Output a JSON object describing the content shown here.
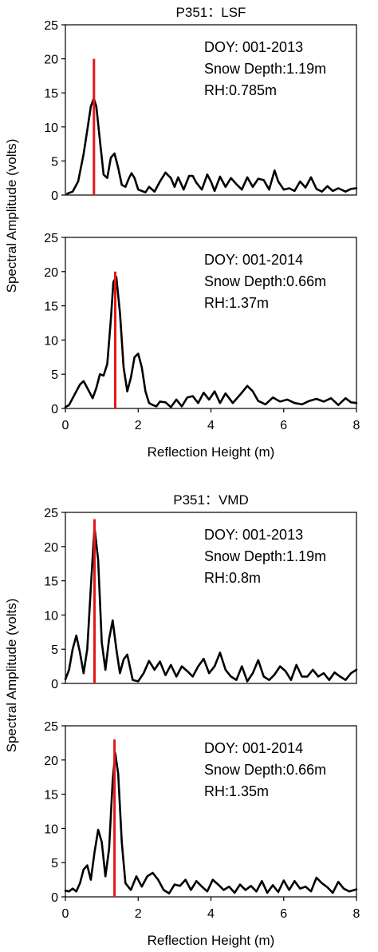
{
  "figure": {
    "ylabel_top": "Spectral Amplitude (volts)",
    "ylabel_bottom": "Spectral Amplitude (volts)"
  },
  "chart_data": [
    {
      "type": "line",
      "title": "P351：LSF",
      "xlabel": "",
      "ylabel": "Spectral Amplitude (volts)",
      "xlim": [
        0,
        8
      ],
      "ylim": [
        0,
        25
      ],
      "yticks": [
        0,
        5,
        10,
        15,
        20,
        25
      ],
      "xticks": [],
      "annotation": [
        "DOY: 001-2013",
        "Snow Depth:1.19m",
        "RH:0.785m"
      ],
      "peak_marker": {
        "x": 0.785,
        "height": 20,
        "color": "#e3171b"
      },
      "series": [
        {
          "color": "#000000",
          "x": [
            0.05,
            0.2,
            0.35,
            0.5,
            0.6,
            0.7,
            0.78,
            0.85,
            0.95,
            1.05,
            1.15,
            1.25,
            1.35,
            1.45,
            1.55,
            1.65,
            1.75,
            1.82,
            1.9,
            2.0,
            2.1,
            2.2,
            2.3,
            2.45,
            2.6,
            2.75,
            2.9,
            3.0,
            3.1,
            3.25,
            3.4,
            3.5,
            3.6,
            3.75,
            3.9,
            4.0,
            4.1,
            4.25,
            4.4,
            4.55,
            4.7,
            4.85,
            5.0,
            5.15,
            5.3,
            5.45,
            5.6,
            5.75,
            5.85,
            6.0,
            6.15,
            6.3,
            6.45,
            6.6,
            6.75,
            6.9,
            7.05,
            7.2,
            7.35,
            7.5,
            7.7,
            7.85,
            8.0
          ],
          "y": [
            0.2,
            0.5,
            2.0,
            6.0,
            9.5,
            13.0,
            14.2,
            13.0,
            8.0,
            3.0,
            2.5,
            5.5,
            6.1,
            4.0,
            1.5,
            1.2,
            2.5,
            3.2,
            2.5,
            0.8,
            0.6,
            0.4,
            1.2,
            0.5,
            2.0,
            3.3,
            2.5,
            1.2,
            2.6,
            0.8,
            2.8,
            2.8,
            1.8,
            0.8,
            3.0,
            2.0,
            0.6,
            2.7,
            1.2,
            2.5,
            1.6,
            0.8,
            2.6,
            1.2,
            2.4,
            2.2,
            0.8,
            3.6,
            2.0,
            0.8,
            1.0,
            0.6,
            2.0,
            1.1,
            2.6,
            0.9,
            0.5,
            1.3,
            0.6,
            1.0,
            0.5,
            0.9,
            1.0
          ]
        }
      ]
    },
    {
      "type": "line",
      "title": "",
      "xlabel": "Reflection Height (m)",
      "ylabel": "Spectral Amplitude (volts)",
      "xlim": [
        0,
        8
      ],
      "ylim": [
        0,
        25
      ],
      "yticks": [
        0,
        5,
        10,
        15,
        20,
        25
      ],
      "xticks": [
        0,
        2,
        4,
        6,
        8
      ],
      "annotation": [
        "DOY: 001-2014",
        "Snow Depth:0.66m",
        "RH:1.37m"
      ],
      "peak_marker": {
        "x": 1.37,
        "height": 20,
        "color": "#e3171b"
      },
      "series": [
        {
          "color": "#000000",
          "x": [
            0.0,
            0.1,
            0.25,
            0.4,
            0.5,
            0.6,
            0.75,
            0.85,
            0.95,
            1.05,
            1.15,
            1.25,
            1.32,
            1.4,
            1.5,
            1.6,
            1.7,
            1.8,
            1.9,
            2.0,
            2.1,
            2.2,
            2.3,
            2.4,
            2.5,
            2.6,
            2.75,
            2.9,
            3.05,
            3.2,
            3.35,
            3.5,
            3.65,
            3.8,
            3.95,
            4.1,
            4.25,
            4.4,
            4.6,
            4.8,
            5.0,
            5.15,
            5.3,
            5.5,
            5.7,
            5.9,
            6.1,
            6.3,
            6.5,
            6.7,
            6.9,
            7.1,
            7.3,
            7.5,
            7.7,
            7.85,
            8.0
          ],
          "y": [
            0.2,
            0.5,
            2.0,
            3.5,
            4.0,
            3.0,
            1.5,
            3.0,
            5.0,
            4.8,
            6.5,
            13.0,
            18.5,
            19.2,
            14.0,
            6.0,
            2.5,
            4.5,
            7.5,
            8.0,
            6.0,
            2.5,
            0.8,
            0.5,
            0.3,
            1.0,
            0.9,
            0.2,
            1.3,
            0.3,
            1.6,
            1.8,
            0.8,
            2.3,
            1.3,
            2.5,
            0.8,
            2.2,
            0.8,
            2.0,
            3.3,
            2.5,
            1.1,
            0.6,
            1.6,
            1.0,
            1.3,
            0.8,
            0.6,
            1.1,
            1.4,
            1.0,
            1.5,
            0.5,
            1.5,
            0.9,
            0.8
          ]
        }
      ]
    },
    {
      "type": "line",
      "title": "P351：VMD",
      "xlabel": "",
      "ylabel": "Spectral Amplitude (volts)",
      "xlim": [
        0,
        8
      ],
      "ylim": [
        0,
        25
      ],
      "yticks": [
        0,
        5,
        10,
        15,
        20,
        25
      ],
      "xticks": [],
      "annotation": [
        "DOY: 001-2013",
        "Snow Depth:1.19m",
        "RH:0.8m"
      ],
      "peak_marker": {
        "x": 0.8,
        "height": 24,
        "color": "#e3171b"
      },
      "series": [
        {
          "color": "#000000",
          "x": [
            0.0,
            0.1,
            0.2,
            0.3,
            0.4,
            0.5,
            0.6,
            0.7,
            0.8,
            0.9,
            1.0,
            1.1,
            1.2,
            1.3,
            1.4,
            1.5,
            1.6,
            1.7,
            1.85,
            2.0,
            2.15,
            2.3,
            2.45,
            2.6,
            2.75,
            2.9,
            3.05,
            3.2,
            3.35,
            3.5,
            3.65,
            3.8,
            3.95,
            4.1,
            4.25,
            4.4,
            4.55,
            4.7,
            4.85,
            5.0,
            5.15,
            5.3,
            5.45,
            5.6,
            5.75,
            5.9,
            6.05,
            6.2,
            6.35,
            6.5,
            6.65,
            6.8,
            6.95,
            7.1,
            7.25,
            7.4,
            7.55,
            7.7,
            7.85,
            8.0
          ],
          "y": [
            0.6,
            2.0,
            5.0,
            7.0,
            4.5,
            1.5,
            5.0,
            14.0,
            22.8,
            18.0,
            6.0,
            2.0,
            6.5,
            9.2,
            5.0,
            1.5,
            3.5,
            4.2,
            0.5,
            0.3,
            1.5,
            3.3,
            2.0,
            3.2,
            1.2,
            2.7,
            1.0,
            2.5,
            1.8,
            1.0,
            2.5,
            3.6,
            1.5,
            2.5,
            4.5,
            2.0,
            1.0,
            0.5,
            2.5,
            0.3,
            1.5,
            3.4,
            1.0,
            0.5,
            1.3,
            2.5,
            1.8,
            0.5,
            2.7,
            1.0,
            1.0,
            2.0,
            1.0,
            1.5,
            0.5,
            1.6,
            1.0,
            0.5,
            1.5,
            2.0
          ]
        }
      ]
    },
    {
      "type": "line",
      "title": "",
      "xlabel": "Reflection Height (m)",
      "ylabel": "Spectral Amplitude (volts)",
      "xlim": [
        0,
        8
      ],
      "ylim": [
        0,
        25
      ],
      "yticks": [
        0,
        5,
        10,
        15,
        20,
        25
      ],
      "xticks": [
        0,
        2,
        4,
        6,
        8
      ],
      "annotation": [
        "DOY: 001-2014",
        "Snow Depth:0.66m",
        "RH:1.35m"
      ],
      "peak_marker": {
        "x": 1.35,
        "height": 23,
        "color": "#e3171b"
      },
      "series": [
        {
          "color": "#000000",
          "x": [
            0.0,
            0.1,
            0.2,
            0.3,
            0.4,
            0.5,
            0.6,
            0.7,
            0.8,
            0.9,
            1.0,
            1.1,
            1.2,
            1.3,
            1.37,
            1.45,
            1.55,
            1.65,
            1.8,
            1.95,
            2.1,
            2.25,
            2.4,
            2.55,
            2.7,
            2.85,
            3.0,
            3.15,
            3.3,
            3.45,
            3.6,
            3.75,
            3.9,
            4.05,
            4.2,
            4.35,
            4.5,
            4.65,
            4.8,
            4.95,
            5.1,
            5.25,
            5.4,
            5.55,
            5.7,
            5.85,
            6.0,
            6.15,
            6.3,
            6.45,
            6.6,
            6.75,
            6.9,
            7.05,
            7.2,
            7.35,
            7.5,
            7.65,
            7.8,
            8.0
          ],
          "y": [
            0.9,
            0.8,
            1.2,
            0.8,
            2.0,
            4.0,
            4.6,
            2.5,
            6.5,
            9.8,
            8.0,
            3.0,
            7.0,
            17.0,
            21.0,
            18.0,
            8.0,
            2.0,
            1.0,
            3.0,
            1.5,
            3.0,
            3.5,
            2.5,
            1.0,
            0.5,
            1.8,
            1.6,
            2.5,
            1.0,
            2.3,
            1.5,
            0.8,
            2.5,
            1.8,
            1.0,
            1.5,
            0.6,
            1.8,
            1.0,
            1.6,
            0.8,
            2.3,
            0.6,
            1.7,
            0.7,
            2.4,
            1.0,
            2.3,
            1.2,
            1.5,
            0.8,
            2.8,
            2.0,
            1.4,
            0.6,
            2.2,
            1.2,
            0.8,
            1.1
          ]
        }
      ]
    }
  ]
}
